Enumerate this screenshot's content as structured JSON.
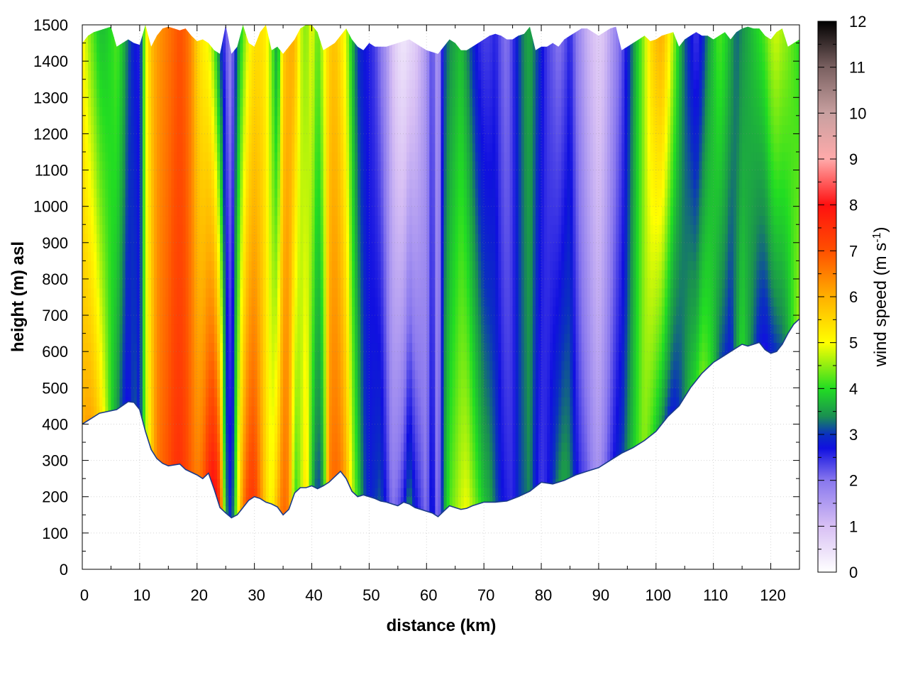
{
  "chart_data": {
    "type": "heatmap",
    "title": "",
    "xlabel": "distance (km)",
    "ylabel": "height (m) asl",
    "colorbar_label_main": "wind speed (m s",
    "colorbar_label_sup": "-1",
    "colorbar_label_close": ")",
    "xlim": [
      0,
      125
    ],
    "ylim": [
      0,
      1500
    ],
    "clim": [
      0,
      12
    ],
    "x_ticks": [
      0,
      10,
      20,
      30,
      40,
      50,
      60,
      70,
      80,
      90,
      100,
      110,
      120
    ],
    "y_ticks": [
      0,
      100,
      200,
      300,
      400,
      500,
      600,
      700,
      800,
      900,
      1000,
      1100,
      1200,
      1300,
      1400,
      1500
    ],
    "colorbar_ticks": [
      0,
      1,
      2,
      3,
      4,
      5,
      6,
      7,
      8,
      9,
      10,
      11,
      12
    ],
    "grid": true,
    "colormap": [
      {
        "value": 0,
        "color": "#ffffff"
      },
      {
        "value": 1,
        "color": "#d8c0f4"
      },
      {
        "value": 2,
        "color": "#8877ee"
      },
      {
        "value": 2.7,
        "color": "#1010e0"
      },
      {
        "value": 3,
        "color": "#0a30c0"
      },
      {
        "value": 3.4,
        "color": "#1a9050"
      },
      {
        "value": 4,
        "color": "#22dd22"
      },
      {
        "value": 5,
        "color": "#ffff00"
      },
      {
        "value": 6,
        "color": "#ffb000"
      },
      {
        "value": 7,
        "color": "#ff5000"
      },
      {
        "value": 8,
        "color": "#ff1010"
      },
      {
        "value": 9,
        "color": "#ffaaaa"
      },
      {
        "value": 10,
        "color": "#c8a0a0"
      },
      {
        "value": 11,
        "color": "#7a6060"
      },
      {
        "value": 12,
        "color": "#000000"
      }
    ],
    "terrain": {
      "x": [
        0,
        3,
        6,
        8,
        9,
        10,
        11,
        12,
        13,
        14,
        15,
        17,
        18,
        20,
        21,
        22,
        23,
        24,
        25,
        26,
        27,
        28,
        29,
        30,
        31,
        32,
        33,
        34,
        35,
        36,
        37,
        38,
        39,
        40,
        41,
        42,
        43,
        44,
        45,
        46,
        47,
        48,
        49,
        50,
        51,
        52,
        53,
        54,
        55,
        56,
        57,
        58,
        59,
        60,
        61,
        62,
        63,
        64,
        65,
        66,
        67,
        68,
        70,
        72,
        74,
        76,
        78,
        80,
        82,
        84,
        86,
        88,
        90,
        92,
        94,
        96,
        98,
        100,
        102,
        104,
        106,
        108,
        110,
        112,
        114,
        115,
        116,
        117,
        118,
        119,
        120,
        121,
        122,
        123,
        124,
        125
      ],
      "height": [
        400,
        430,
        440,
        462,
        460,
        440,
        380,
        330,
        305,
        292,
        285,
        290,
        275,
        260,
        250,
        265,
        220,
        170,
        155,
        142,
        150,
        170,
        190,
        200,
        195,
        185,
        180,
        172,
        150,
        165,
        210,
        225,
        225,
        230,
        222,
        230,
        240,
        255,
        270,
        250,
        215,
        200,
        205,
        200,
        195,
        188,
        185,
        180,
        175,
        185,
        180,
        170,
        165,
        160,
        155,
        145,
        160,
        175,
        170,
        165,
        168,
        175,
        185,
        185,
        188,
        200,
        215,
        240,
        235,
        245,
        260,
        270,
        280,
        300,
        320,
        335,
        355,
        380,
        420,
        450,
        500,
        540,
        570,
        590,
        610,
        620,
        615,
        620,
        625,
        605,
        595,
        600,
        620,
        650,
        675,
        690
      ]
    },
    "top_profile": {
      "x": [
        0,
        1,
        2,
        3,
        4,
        5,
        6,
        7,
        8,
        9,
        10,
        11,
        12,
        13,
        14,
        15,
        16,
        17,
        18,
        19,
        20,
        21,
        22,
        23,
        24,
        25,
        26,
        27,
        28,
        29,
        30,
        31,
        32,
        33,
        34,
        35,
        36,
        37,
        38,
        39,
        40,
        41,
        42,
        43,
        44,
        45,
        46,
        47,
        48,
        49,
        50,
        51,
        52,
        53,
        54,
        55,
        56,
        57,
        58,
        59,
        60,
        61,
        62,
        63,
        64,
        65,
        66,
        67,
        68,
        69,
        70,
        71,
        72,
        73,
        74,
        75,
        76,
        77,
        78,
        79,
        80,
        81,
        82,
        83,
        84,
        85,
        86,
        87,
        88,
        89,
        90,
        91,
        92,
        93,
        94,
        95,
        96,
        97,
        98,
        99,
        100,
        101,
        102,
        103,
        104,
        105,
        106,
        107,
        108,
        109,
        110,
        111,
        112,
        113,
        114,
        115,
        116,
        117,
        118,
        119,
        120,
        121,
        122,
        123,
        124,
        125
      ],
      "height": [
        1450,
        1470,
        1480,
        1485,
        1490,
        1495,
        1440,
        1450,
        1460,
        1450,
        1445,
        1500,
        1440,
        1470,
        1490,
        1495,
        1490,
        1485,
        1490,
        1470,
        1455,
        1460,
        1450,
        1430,
        1420,
        1500,
        1420,
        1440,
        1500,
        1450,
        1440,
        1480,
        1500,
        1430,
        1440,
        1420,
        1440,
        1460,
        1490,
        1500,
        1500,
        1480,
        1430,
        1440,
        1450,
        1470,
        1490,
        1460,
        1440,
        1430,
        1450,
        1440,
        1440,
        1440,
        1445,
        1450,
        1455,
        1460,
        1450,
        1440,
        1430,
        1425,
        1420,
        1440,
        1460,
        1450,
        1430,
        1430,
        1440,
        1450,
        1460,
        1470,
        1475,
        1470,
        1460,
        1460,
        1470,
        1475,
        1495,
        1430,
        1440,
        1440,
        1450,
        1440,
        1460,
        1470,
        1480,
        1490,
        1490,
        1480,
        1470,
        1480,
        1490,
        1495,
        1430,
        1440,
        1450,
        1460,
        1470,
        1455,
        1460,
        1470,
        1475,
        1480,
        1440,
        1460,
        1470,
        1480,
        1470,
        1470,
        1460,
        1470,
        1480,
        1460,
        1480,
        1490,
        1495,
        1490,
        1490,
        1470,
        1460,
        1480,
        1490,
        1440,
        1450,
        1460
      ]
    },
    "columns": {
      "x": [
        0,
        1,
        2,
        3,
        4,
        5,
        6,
        7,
        8,
        9,
        10,
        11,
        12,
        13,
        14,
        15,
        16,
        17,
        18,
        19,
        20,
        21,
        22,
        23,
        24,
        25,
        26,
        27,
        28,
        29,
        30,
        31,
        32,
        33,
        34,
        35,
        36,
        37,
        38,
        39,
        40,
        41,
        42,
        43,
        44,
        45,
        46,
        47,
        48,
        49,
        50,
        51,
        52,
        53,
        54,
        55,
        56,
        57,
        58,
        59,
        60,
        61,
        62,
        63,
        64,
        65,
        66,
        67,
        68,
        69,
        70,
        71,
        72,
        73,
        74,
        75,
        76,
        77,
        78,
        79,
        80,
        81,
        82,
        83,
        84,
        85,
        86,
        87,
        88,
        89,
        90,
        91,
        92,
        93,
        94,
        95,
        96,
        97,
        98,
        99,
        100,
        101,
        102,
        103,
        104,
        105,
        106,
        107,
        108,
        109,
        110,
        111,
        112,
        113,
        114,
        115,
        116,
        117,
        118,
        119,
        120,
        121,
        122,
        123,
        124,
        125
      ],
      "wind_low": [
        6.0,
        6.2,
        6.0,
        5.5,
        4.8,
        4.0,
        3.5,
        3.0,
        2.6,
        3.2,
        2.8,
        4.5,
        5.5,
        6.5,
        6.8,
        7.0,
        7.4,
        7.5,
        7.2,
        6.8,
        6.5,
        6.8,
        7.6,
        8.2,
        7.5,
        3.5,
        2.8,
        4.8,
        6.5,
        7.3,
        7.4,
        6.5,
        5.5,
        5.0,
        6.0,
        6.8,
        6.5,
        4.0,
        4.5,
        5.5,
        3.8,
        3.0,
        3.5,
        6.5,
        6.8,
        6.6,
        6.0,
        4.8,
        4.0,
        3.2,
        2.8,
        3.0,
        3.2,
        2.6,
        2.0,
        2.2,
        2.6,
        3.5,
        2.8,
        2.4,
        2.0,
        3.0,
        1.8,
        3.5,
        4.2,
        4.5,
        4.8,
        5.0,
        4.6,
        4.2,
        3.8,
        3.6,
        3.2,
        2.8,
        2.6,
        2.5,
        3.0,
        3.2,
        3.4,
        2.8,
        2.4,
        2.6,
        3.0,
        3.4,
        3.6,
        3.4,
        2.8,
        2.4,
        2.2,
        1.8,
        1.6,
        2.0,
        2.4,
        2.8,
        3.0,
        3.4,
        3.8,
        4.2,
        4.5,
        4.2,
        3.8,
        3.4,
        3.0,
        2.8,
        3.0,
        3.4,
        3.8,
        4.0,
        4.4,
        4.2,
        3.8,
        3.2,
        3.0,
        2.8,
        3.5,
        4.0,
        3.6,
        3.2,
        2.8,
        2.6,
        2.8,
        3.0,
        3.2,
        3.6,
        4.2,
        4.6
      ],
      "wind_high": [
        5.2,
        4.6,
        4.2,
        3.8,
        3.8,
        4.0,
        4.2,
        3.8,
        3.2,
        2.8,
        2.6,
        4.8,
        5.8,
        6.2,
        6.4,
        6.6,
        6.8,
        7.0,
        6.8,
        6.4,
        5.6,
        5.2,
        5.0,
        4.4,
        3.2,
        2.2,
        1.8,
        3.4,
        4.2,
        5.0,
        5.4,
        5.4,
        5.2,
        4.4,
        3.4,
        5.6,
        6.0,
        6.0,
        4.8,
        4.4,
        5.0,
        4.2,
        4.8,
        5.6,
        5.8,
        5.4,
        4.8,
        3.8,
        3.0,
        2.8,
        2.6,
        2.4,
        2.0,
        1.6,
        1.0,
        0.6,
        0.4,
        0.6,
        0.8,
        1.2,
        1.6,
        2.4,
        1.4,
        3.0,
        3.4,
        3.6,
        3.8,
        3.4,
        3.0,
        2.6,
        2.4,
        2.4,
        2.6,
        2.2,
        2.0,
        2.4,
        3.0,
        3.4,
        3.6,
        3.2,
        2.8,
        2.4,
        2.2,
        2.0,
        2.2,
        2.6,
        2.0,
        1.6,
        1.2,
        1.0,
        0.8,
        1.0,
        1.4,
        1.8,
        2.2,
        2.8,
        3.4,
        4.0,
        4.6,
        5.4,
        5.8,
        6.0,
        5.4,
        4.6,
        3.8,
        3.2,
        2.8,
        2.4,
        2.8,
        3.4,
        3.8,
        4.2,
        4.0,
        3.6,
        3.2,
        3.4,
        3.6,
        3.8,
        4.0,
        4.2,
        4.6,
        4.8,
        4.6,
        4.4,
        4.2,
        4.0
      ]
    }
  }
}
